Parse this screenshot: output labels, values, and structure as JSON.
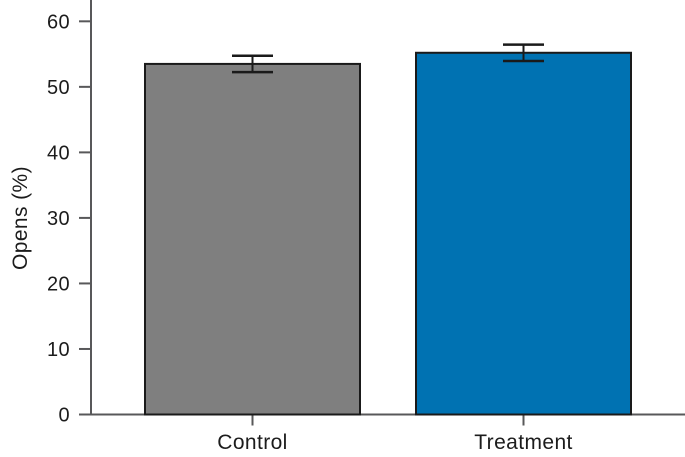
{
  "figure": {
    "kind": "bar-chart",
    "background": "#ffffff"
  },
  "chart_data": {
    "type": "bar",
    "title": "",
    "categories": [
      "Control",
      "Treatment"
    ],
    "values": [
      53.5,
      55.2
    ],
    "errors": [
      1.25,
      1.25
    ],
    "bar_colors": [
      "#7f7f7f",
      "#0072b2"
    ],
    "bar_edge_color": "#1a1a1a",
    "error_color": "#1a1a1a",
    "xlabel": "",
    "ylabel": "Opens (%)",
    "yticks": [
      0,
      10,
      20,
      30,
      40,
      50,
      60
    ],
    "ylim": [
      0,
      63
    ],
    "grid": false,
    "legend_position": "none",
    "axis_color": "#58585a",
    "text_color": "#1c1c1c"
  }
}
